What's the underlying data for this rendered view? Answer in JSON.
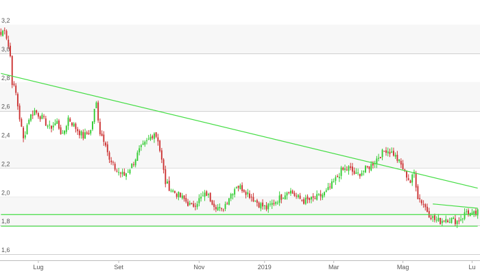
{
  "chart_data": {
    "type": "candlestick",
    "title": "",
    "xlabel": "",
    "ylabel": "",
    "ylim": [
      1.55,
      3.3
    ],
    "y_ticks": [
      "1,6",
      "1,8",
      "2,0",
      "2,2",
      "2,4",
      "2,6",
      "2,8",
      "3,0",
      "3,2"
    ],
    "y_tick_values": [
      1.6,
      1.8,
      2.0,
      2.2,
      2.4,
      2.6,
      2.8,
      3.0,
      3.2
    ],
    "x_ticks": [
      {
        "label": "Lug",
        "index": 20
      },
      {
        "label": "Set",
        "index": 63
      },
      {
        "label": "Nov",
        "index": 106
      },
      {
        "label": "2019",
        "index": 141
      },
      {
        "label": "Mar",
        "index": 178
      },
      {
        "label": "Mag",
        "index": 215
      },
      {
        "label": "Lu",
        "index": 252
      }
    ],
    "n_periods": 256,
    "colors": {
      "up": "#33cc33",
      "down": "#cc3333",
      "trendline": "#44dd44",
      "grid": "#cfcfcf"
    },
    "anchors": [
      [
        0,
        3.13
      ],
      [
        2,
        3.18
      ],
      [
        4,
        3.05
      ],
      [
        5,
        2.98
      ],
      [
        6,
        2.8
      ],
      [
        8,
        2.72
      ],
      [
        10,
        2.55
      ],
      [
        12,
        2.4
      ],
      [
        15,
        2.55
      ],
      [
        18,
        2.6
      ],
      [
        22,
        2.55
      ],
      [
        26,
        2.48
      ],
      [
        30,
        2.52
      ],
      [
        33,
        2.42
      ],
      [
        36,
        2.55
      ],
      [
        40,
        2.48
      ],
      [
        44,
        2.42
      ],
      [
        48,
        2.46
      ],
      [
        50,
        2.6
      ],
      [
        51,
        2.65
      ],
      [
        53,
        2.45
      ],
      [
        56,
        2.38
      ],
      [
        58,
        2.25
      ],
      [
        62,
        2.18
      ],
      [
        66,
        2.15
      ],
      [
        70,
        2.22
      ],
      [
        74,
        2.32
      ],
      [
        78,
        2.38
      ],
      [
        82,
        2.45
      ],
      [
        84,
        2.4
      ],
      [
        86,
        2.25
      ],
      [
        88,
        2.1
      ],
      [
        91,
        2.05
      ],
      [
        94,
        2.02
      ],
      [
        98,
        1.98
      ],
      [
        102,
        1.93
      ],
      [
        106,
        1.98
      ],
      [
        110,
        2.02
      ],
      [
        114,
        1.95
      ],
      [
        118,
        1.9
      ],
      [
        122,
        2.0
      ],
      [
        126,
        2.08
      ],
      [
        130,
        2.05
      ],
      [
        134,
        2.0
      ],
      [
        138,
        1.95
      ],
      [
        142,
        1.92
      ],
      [
        146,
        1.96
      ],
      [
        150,
        2.0
      ],
      [
        154,
        2.05
      ],
      [
        158,
        2.0
      ],
      [
        162,
        1.97
      ],
      [
        166,
        1.98
      ],
      [
        170,
        2.0
      ],
      [
        174,
        2.03
      ],
      [
        178,
        2.1
      ],
      [
        182,
        2.18
      ],
      [
        186,
        2.2
      ],
      [
        190,
        2.15
      ],
      [
        194,
        2.18
      ],
      [
        198,
        2.22
      ],
      [
        202,
        2.28
      ],
      [
        206,
        2.33
      ],
      [
        210,
        2.3
      ],
      [
        214,
        2.22
      ],
      [
        217,
        2.15
      ],
      [
        219,
        2.1
      ],
      [
        221,
        2.17
      ],
      [
        223,
        2.0
      ],
      [
        226,
        1.95
      ],
      [
        229,
        1.88
      ],
      [
        232,
        1.84
      ],
      [
        235,
        1.83
      ],
      [
        238,
        1.85
      ],
      [
        241,
        1.84
      ],
      [
        244,
        1.83
      ],
      [
        247,
        1.86
      ],
      [
        249,
        1.9
      ],
      [
        252,
        1.87
      ],
      [
        255,
        1.89
      ]
    ],
    "trendlines": [
      {
        "x1": 0,
        "y1": 2.86,
        "x2": 255,
        "y2": 2.06
      },
      {
        "x1": 231,
        "y1": 1.95,
        "x2": 255,
        "y2": 1.92
      },
      {
        "x1": 0,
        "y1": 1.876,
        "x2": 255,
        "y2": 1.876
      },
      {
        "x1": 0,
        "y1": 1.795,
        "x2": 255,
        "y2": 1.795
      }
    ],
    "grid": true,
    "legend": "none"
  }
}
